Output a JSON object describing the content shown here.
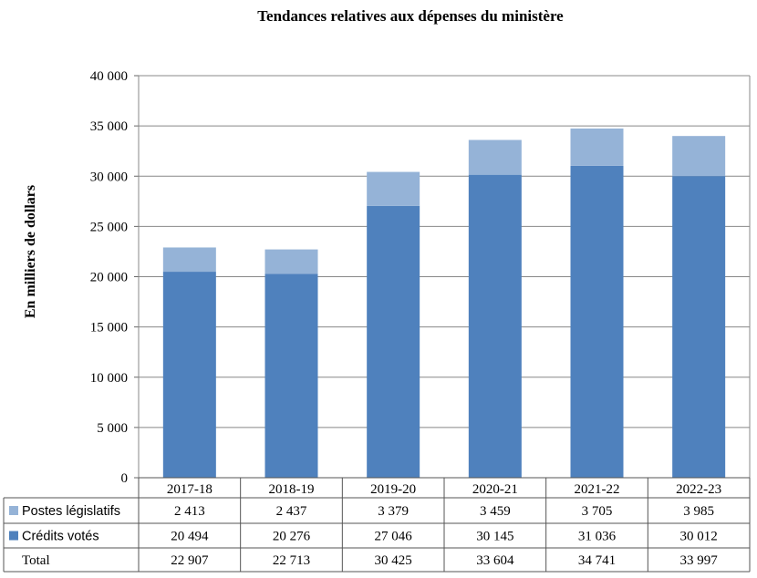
{
  "chart_data": {
    "type": "bar",
    "stacked": true,
    "title": "Tendances relatives aux dépenses du ministère",
    "ylabel": "En milliers de dollars",
    "ylim": [
      0,
      40000
    ],
    "yticks": [
      0,
      5000,
      10000,
      15000,
      20000,
      25000,
      30000,
      35000,
      40000
    ],
    "ytick_labels": [
      "0",
      "5 000",
      "10 000",
      "15 000",
      "20 000",
      "25 000",
      "30 000",
      "35 000",
      "40 000"
    ],
    "grid": true,
    "categories": [
      "2017-18",
      "2018-19",
      "2019-20",
      "2020-21",
      "2021-22",
      "2022-23"
    ],
    "series": [
      {
        "name": "Crédits votés",
        "color": "#4f81bd",
        "values": [
          20494,
          20276,
          27046,
          30145,
          31036,
          30012
        ],
        "labels": [
          "20 494",
          "20 276",
          "27 046",
          "30 145",
          "31 036",
          "30 012"
        ]
      },
      {
        "name": "Postes législatifs",
        "color": "#95b3d7",
        "values": [
          2413,
          2437,
          3379,
          3459,
          3705,
          3985
        ],
        "labels": [
          "2 413",
          "2 437",
          "3 379",
          "3 459",
          "3 705",
          "3 985"
        ]
      }
    ],
    "total_row": {
      "name": "Total",
      "labels": [
        "22 907",
        "22 713",
        "30 425",
        "33 604",
        "34 741",
        "33 997"
      ]
    }
  }
}
